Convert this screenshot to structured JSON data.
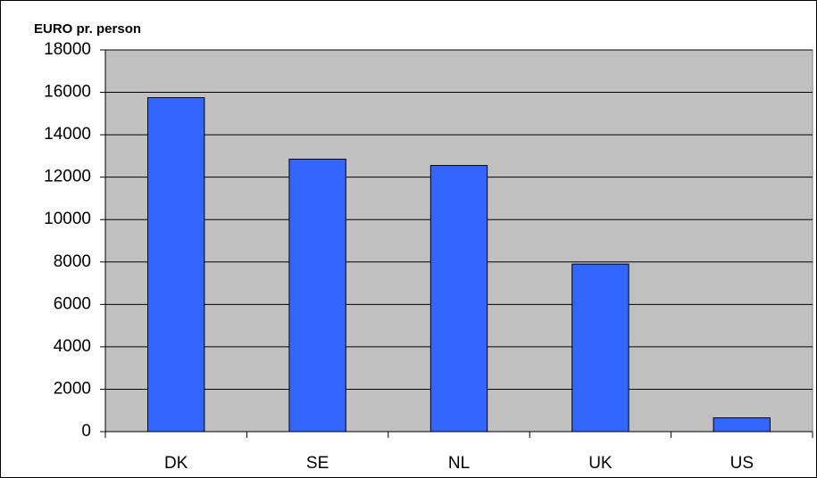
{
  "chart_data": {
    "type": "bar",
    "title": "EURO pr. person",
    "categories": [
      "DK",
      "SE",
      "NL",
      "UK",
      "US"
    ],
    "values": [
      15750,
      12850,
      12550,
      7900,
      650
    ],
    "color": "#3366ff",
    "plot_background": "#c0c0c0",
    "ylim": [
      0,
      18000
    ],
    "yticks": [
      0,
      2000,
      4000,
      6000,
      8000,
      10000,
      12000,
      14000,
      16000,
      18000
    ],
    "grid": true
  }
}
